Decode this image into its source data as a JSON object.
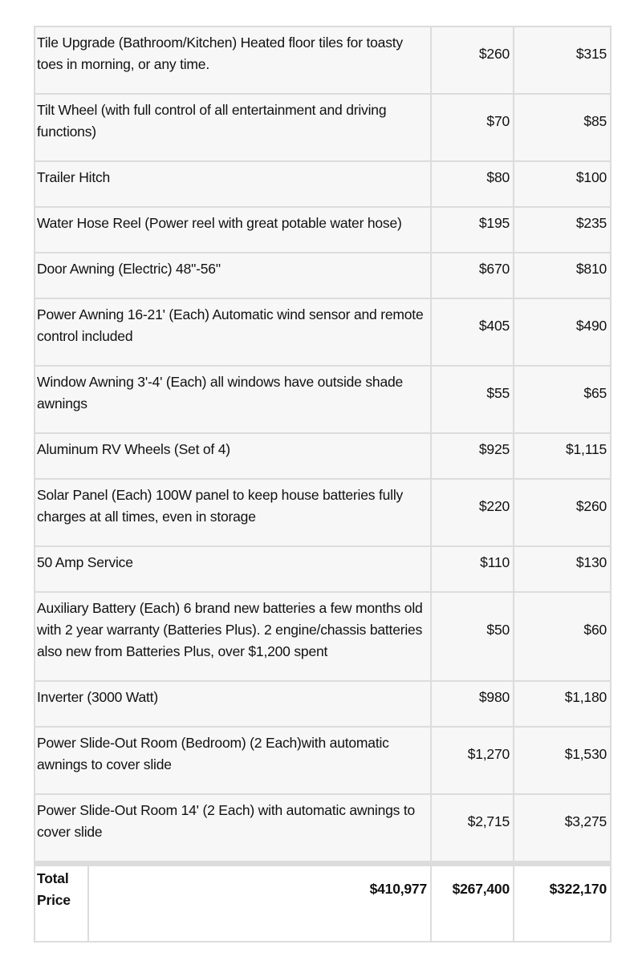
{
  "items": [
    {
      "description": "Tile Upgrade (Bathroom/Kitchen) Heated floor tiles for toasty toes in morning, or any time.",
      "price_a": "$260",
      "price_b": "$315"
    },
    {
      "description": "Tilt Wheel (with full control of all entertainment and driving functions)",
      "price_a": "$70",
      "price_b": "$85"
    },
    {
      "description": "Trailer Hitch",
      "price_a": "$80",
      "price_b": "$100"
    },
    {
      "description": "Water Hose Reel (Power reel with great potable water hose)",
      "price_a": "$195",
      "price_b": "$235"
    },
    {
      "description": "Door Awning (Electric) 48\"-56\"",
      "price_a": "$670",
      "price_b": "$810"
    },
    {
      "description": "Power Awning 16-21' (Each) Automatic wind sensor and remote control included",
      "price_a": "$405",
      "price_b": "$490"
    },
    {
      "description": "Window Awning 3'-4' (Each) all windows have outside shade awnings",
      "price_a": "$55",
      "price_b": "$65"
    },
    {
      "description": "Aluminum RV Wheels (Set of 4)",
      "price_a": "$925",
      "price_b": "$1,115"
    },
    {
      "description": "Solar Panel (Each) 100W panel to keep house batteries fully charges at all times, even in storage",
      "price_a": "$220",
      "price_b": "$260"
    },
    {
      "description": "50 Amp Service",
      "price_a": "$110",
      "price_b": "$130"
    },
    {
      "description": "Auxiliary Battery (Each) 6 brand new batteries a few months old with 2 year warranty (Batteries Plus). 2 engine/chassis batteries also new from Batteries Plus, over $1,200 spent",
      "price_a": "$50",
      "price_b": "$60"
    },
    {
      "description": "Inverter (3000 Watt)",
      "price_a": "$980",
      "price_b": "$1,180"
    },
    {
      "description": "Power Slide-Out Room (Bedroom) (2 Each)with automatic awnings to cover slide",
      "price_a": "$1,270",
      "price_b": "$1,530"
    },
    {
      "description": "Power Slide-Out Room 14' (2 Each) with automatic awnings to cover slide",
      "price_a": "$2,715",
      "price_b": "$3,275"
    }
  ],
  "total": {
    "label": "Total Price",
    "value_main": "$410,977",
    "value_a": "$267,400",
    "value_b": "$322,170"
  }
}
